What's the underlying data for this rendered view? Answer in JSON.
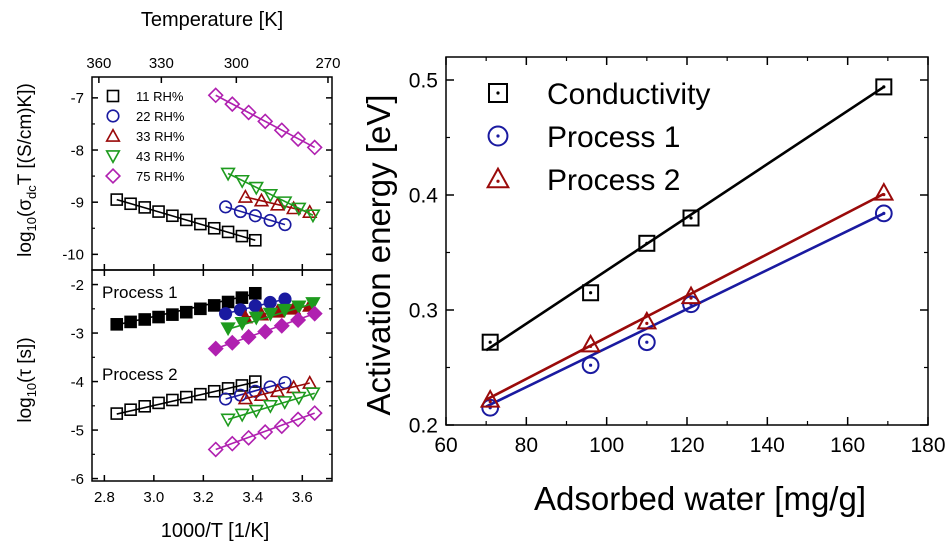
{
  "colors": {
    "black": "#000000",
    "navy": "#1a1aa0",
    "darkred": "#9a0a0a",
    "green": "#1e9b1e",
    "magenta": "#b020b0"
  },
  "chart_data": [
    {
      "id": "left_top",
      "type": "scatter",
      "title": "",
      "top_xlabel": "Temperature [K]",
      "top_xticks": [
        "360",
        "330",
        "300",
        "270"
      ],
      "top_xtick_values": [
        360,
        330,
        300,
        270
      ],
      "ylabel_parts": [
        "log",
        "10",
        "(σ",
        "dc",
        "T [(S/cm)K])"
      ],
      "ylim": [
        -10.3,
        -6.6
      ],
      "yticks": [
        "-10",
        "-9",
        "-8",
        "-7"
      ],
      "ytick_values": [
        -10,
        -9,
        -8,
        -7
      ],
      "legend_position": "top-left",
      "series": [
        {
          "name": "11 RH%",
          "marker": "square",
          "color": "#000000",
          "x": [
            2.85,
            2.906,
            2.963,
            3.019,
            3.075,
            3.131,
            3.188,
            3.244,
            3.3,
            3.356,
            3.41
          ],
          "y": [
            -8.95,
            -9.03,
            -9.1,
            -9.18,
            -9.26,
            -9.34,
            -9.42,
            -9.5,
            -9.57,
            -9.65,
            -9.73
          ],
          "fit": [
            [
              2.85,
              -8.95
            ],
            [
              3.41,
              -9.73
            ]
          ]
        },
        {
          "name": "22 RH%",
          "marker": "circle",
          "color": "#1a1aa0",
          "x": [
            3.29,
            3.35,
            3.41,
            3.47,
            3.53
          ],
          "y": [
            -9.09,
            -9.18,
            -9.26,
            -9.35,
            -9.43
          ],
          "fit": [
            [
              3.29,
              -9.09
            ],
            [
              3.53,
              -9.43
            ]
          ]
        },
        {
          "name": "33 RH%",
          "marker": "triangle-up",
          "color": "#9a0a0a",
          "x": [
            3.37,
            3.435,
            3.5,
            3.565,
            3.63
          ],
          "y": [
            -8.9,
            -8.97,
            -9.05,
            -9.12,
            -9.19
          ],
          "fit": [
            [
              3.37,
              -8.9
            ],
            [
              3.63,
              -9.19
            ]
          ]
        },
        {
          "name": "43 RH%",
          "marker": "triangle-down",
          "color": "#1e9b1e",
          "x": [
            3.3,
            3.357,
            3.414,
            3.471,
            3.529,
            3.586,
            3.643
          ],
          "y": [
            -8.45,
            -8.59,
            -8.72,
            -8.86,
            -9.0,
            -9.12,
            -9.25
          ],
          "fit": [
            [
              3.3,
              -8.45
            ],
            [
              3.643,
              -9.25
            ]
          ]
        },
        {
          "name": "75 RH%",
          "marker": "diamond",
          "color": "#b020b0",
          "x": [
            3.25,
            3.317,
            3.383,
            3.45,
            3.517,
            3.583,
            3.65
          ],
          "y": [
            -6.95,
            -7.12,
            -7.28,
            -7.45,
            -7.62,
            -7.79,
            -7.95
          ],
          "fit": [
            [
              3.25,
              -6.95
            ],
            [
              3.65,
              -7.95
            ]
          ]
        }
      ]
    },
    {
      "id": "left_bottom",
      "type": "scatter",
      "title": "",
      "xlabel": "1000/T [1/K]",
      "xlim": [
        2.75,
        3.72
      ],
      "xticks": [
        "2.8",
        "3.0",
        "3.2",
        "3.4",
        "3.6"
      ],
      "xtick_values": [
        2.8,
        3.0,
        3.2,
        3.4,
        3.6
      ],
      "ylabel_parts": [
        "log",
        "10",
        "(τ [s])"
      ],
      "ylim": [
        -6.05,
        -1.7
      ],
      "yticks": [
        "-6",
        "-5",
        "-4",
        "-3",
        "-2"
      ],
      "ytick_values": [
        -6,
        -5,
        -4,
        -3,
        -2
      ],
      "annotations": [
        "Process 1",
        "Process 2"
      ],
      "series": [
        {
          "name": "11 RH% process 1",
          "marker": "square-filled",
          "color": "#000000",
          "x": [
            2.85,
            2.906,
            2.963,
            3.019,
            3.075,
            3.131,
            3.188,
            3.244,
            3.3,
            3.356,
            3.41
          ],
          "y": [
            -2.82,
            -2.77,
            -2.72,
            -2.67,
            -2.62,
            -2.57,
            -2.5,
            -2.43,
            -2.36,
            -2.27,
            -2.18
          ],
          "fit": [
            [
              2.85,
              -2.83
            ],
            [
              3.42,
              -2.18
            ]
          ]
        },
        {
          "name": "22 RH% process 1",
          "marker": "circle-filled",
          "color": "#1a1aa0",
          "x": [
            3.29,
            3.35,
            3.41,
            3.47,
            3.53
          ],
          "y": [
            -2.6,
            -2.52,
            -2.44,
            -2.37,
            -2.3
          ],
          "fit": [
            [
              3.29,
              -2.6
            ],
            [
              3.53,
              -2.3
            ]
          ]
        },
        {
          "name": "33 RH% process 1",
          "marker": "triangle-up-filled",
          "color": "#9a0a0a",
          "x": [
            3.37,
            3.435,
            3.5,
            3.565,
            3.63
          ],
          "y": [
            -2.68,
            -2.62,
            -2.56,
            -2.5,
            -2.44
          ],
          "fit": [
            [
              3.37,
              -2.68
            ],
            [
              3.63,
              -2.44
            ]
          ]
        },
        {
          "name": "43 RH% process 1",
          "marker": "triangle-down-filled",
          "color": "#1e9b1e",
          "x": [
            3.3,
            3.357,
            3.414,
            3.471,
            3.529,
            3.586,
            3.643
          ],
          "y": [
            -2.9,
            -2.79,
            -2.68,
            -2.6,
            -2.52,
            -2.45,
            -2.38
          ],
          "fit": [
            [
              3.3,
              -2.92
            ],
            [
              3.65,
              -2.38
            ]
          ]
        },
        {
          "name": "75 RH% process 1",
          "marker": "diamond-filled",
          "color": "#b020b0",
          "x": [
            3.25,
            3.317,
            3.383,
            3.45,
            3.517,
            3.583,
            3.65
          ],
          "y": [
            -3.32,
            -3.2,
            -3.08,
            -2.97,
            -2.85,
            -2.73,
            -2.6
          ],
          "fit": [
            [
              3.25,
              -3.32
            ],
            [
              3.65,
              -2.6
            ]
          ]
        },
        {
          "name": "11 RH% process 2",
          "marker": "square",
          "color": "#000000",
          "x": [
            2.85,
            2.906,
            2.963,
            3.019,
            3.075,
            3.131,
            3.188,
            3.244,
            3.3,
            3.356,
            3.41
          ],
          "y": [
            -4.66,
            -4.58,
            -4.51,
            -4.44,
            -4.38,
            -4.32,
            -4.26,
            -4.2,
            -4.14,
            -4.08,
            -4.0
          ],
          "fit": [
            [
              2.85,
              -4.67
            ],
            [
              3.42,
              -4.0
            ]
          ]
        },
        {
          "name": "22 RH% process 2",
          "marker": "circle",
          "color": "#1a1aa0",
          "x": [
            3.29,
            3.35,
            3.41,
            3.47,
            3.53
          ],
          "y": [
            -4.36,
            -4.28,
            -4.2,
            -4.11,
            -4.02
          ],
          "fit": [
            [
              3.29,
              -4.36
            ],
            [
              3.53,
              -4.02
            ]
          ]
        },
        {
          "name": "33 RH% process 2",
          "marker": "triangle-up",
          "color": "#9a0a0a",
          "x": [
            3.37,
            3.435,
            3.5,
            3.565,
            3.63
          ],
          "y": [
            -4.35,
            -4.28,
            -4.2,
            -4.12,
            -4.03
          ],
          "fit": [
            [
              3.37,
              -4.35
            ],
            [
              3.63,
              -4.03
            ]
          ]
        },
        {
          "name": "43 RH% process 2",
          "marker": "triangle-down",
          "color": "#1e9b1e",
          "x": [
            3.3,
            3.357,
            3.414,
            3.471,
            3.529,
            3.586,
            3.643
          ],
          "y": [
            -4.78,
            -4.68,
            -4.6,
            -4.5,
            -4.42,
            -4.33,
            -4.24
          ],
          "fit": [
            [
              3.3,
              -4.78
            ],
            [
              3.65,
              -4.24
            ]
          ]
        },
        {
          "name": "75 RH% process 2",
          "marker": "diamond",
          "color": "#b020b0",
          "x": [
            3.25,
            3.317,
            3.383,
            3.45,
            3.517,
            3.583,
            3.65
          ],
          "y": [
            -5.4,
            -5.28,
            -5.16,
            -5.04,
            -4.92,
            -4.78,
            -4.65
          ],
          "fit": [
            [
              3.25,
              -5.4
            ],
            [
              3.65,
              -4.65
            ]
          ]
        }
      ]
    },
    {
      "id": "right",
      "type": "scatter",
      "title": "",
      "xlabel": "Adsorbed water [mg/g]",
      "ylabel": "Activation energy [eV]",
      "xlim": [
        60,
        180
      ],
      "ylim": [
        0.2,
        0.52
      ],
      "xticks": [
        "60",
        "80",
        "100",
        "120",
        "140",
        "160",
        "180"
      ],
      "xtick_values": [
        60,
        80,
        100,
        120,
        140,
        160,
        180
      ],
      "yticks": [
        "0.2",
        "0.3",
        "0.4",
        "0.5"
      ],
      "ytick_values": [
        0.2,
        0.3,
        0.4,
        0.5
      ],
      "legend_position": "top-left",
      "series": [
        {
          "name": "Conductivity",
          "marker": "square-dot",
          "color": "#000000",
          "x": [
            71,
            96,
            110,
            121,
            169
          ],
          "y": [
            0.272,
            0.315,
            0.358,
            0.38,
            0.494
          ],
          "fit": [
            [
              70,
              0.265
            ],
            [
              169,
              0.494
            ]
          ]
        },
        {
          "name": "Process 1",
          "marker": "circle-dot",
          "color": "#1a1aa0",
          "x": [
            71,
            96,
            110,
            121,
            169
          ],
          "y": [
            0.215,
            0.252,
            0.272,
            0.305,
            0.384
          ],
          "fit": [
            [
              70,
              0.216
            ],
            [
              169,
              0.384
            ]
          ]
        },
        {
          "name": "Process 2",
          "marker": "triangle-dot",
          "color": "#9a0a0a",
          "x": [
            71,
            96,
            110,
            121,
            169
          ],
          "y": [
            0.222,
            0.27,
            0.29,
            0.312,
            0.402
          ],
          "fit": [
            [
              70,
              0.222
            ],
            [
              169,
              0.401
            ]
          ]
        }
      ]
    }
  ]
}
